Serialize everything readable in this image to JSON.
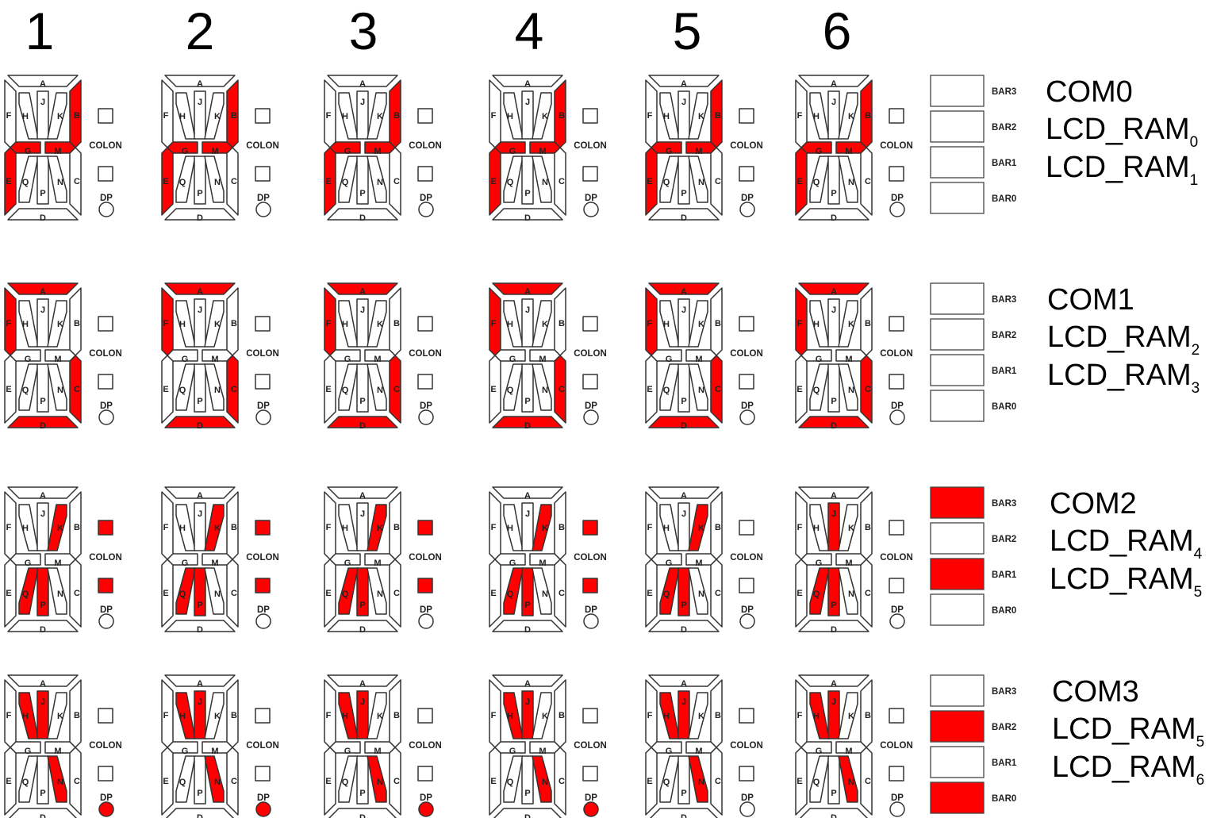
{
  "colors": {
    "on": "#ff0000",
    "off": "#ffffff",
    "stroke": "#333333"
  },
  "segment_labels": [
    "A",
    "B",
    "C",
    "D",
    "E",
    "F",
    "G",
    "M",
    "H",
    "J",
    "K",
    "N",
    "P",
    "Q"
  ],
  "colon_label": "COLON",
  "dp_label": "DP",
  "columns": [
    "1",
    "2",
    "3",
    "4",
    "5",
    "6"
  ],
  "rows": [
    {
      "com": "COM0",
      "ram": [
        {
          "text": "LCD_RAM",
          "sub": "0"
        },
        {
          "text": "LCD_RAM",
          "sub": "1"
        }
      ],
      "bars": [
        {
          "label": "BAR3",
          "on": false
        },
        {
          "label": "BAR2",
          "on": false
        },
        {
          "label": "BAR1",
          "on": false
        },
        {
          "label": "BAR0",
          "on": false
        }
      ],
      "digits": [
        {
          "on": [
            "B",
            "G",
            "M",
            "E"
          ],
          "colon": false,
          "dp": false
        },
        {
          "on": [
            "B",
            "G",
            "M",
            "E"
          ],
          "colon": false,
          "dp": false
        },
        {
          "on": [
            "B",
            "G",
            "M",
            "E"
          ],
          "colon": false,
          "dp": false
        },
        {
          "on": [
            "B",
            "G",
            "M",
            "E"
          ],
          "colon": false,
          "dp": false
        },
        {
          "on": [
            "B",
            "G",
            "M",
            "E"
          ],
          "colon": false,
          "dp": false
        },
        {
          "on": [
            "B",
            "G",
            "M",
            "E"
          ],
          "colon": false,
          "dp": false
        }
      ]
    },
    {
      "com": "COM1",
      "ram": [
        {
          "text": "LCD_RAM",
          "sub": "2"
        },
        {
          "text": "LCD_RAM",
          "sub": "3"
        }
      ],
      "bars": [
        {
          "label": "BAR3",
          "on": false
        },
        {
          "label": "BAR2",
          "on": false
        },
        {
          "label": "BAR1",
          "on": false
        },
        {
          "label": "BAR0",
          "on": false
        }
      ],
      "digits": [
        {
          "on": [
            "A",
            "F",
            "C",
            "D"
          ],
          "colon": false,
          "dp": false
        },
        {
          "on": [
            "A",
            "F",
            "C",
            "D"
          ],
          "colon": false,
          "dp": false
        },
        {
          "on": [
            "A",
            "F",
            "C",
            "D"
          ],
          "colon": false,
          "dp": false
        },
        {
          "on": [
            "A",
            "F",
            "C",
            "D"
          ],
          "colon": false,
          "dp": false
        },
        {
          "on": [
            "A",
            "F",
            "C",
            "D"
          ],
          "colon": false,
          "dp": false
        },
        {
          "on": [
            "A",
            "F",
            "C",
            "D"
          ],
          "colon": false,
          "dp": false
        }
      ]
    },
    {
      "com": "COM2",
      "ram": [
        {
          "text": "LCD_RAM",
          "sub": "4"
        },
        {
          "text": "LCD_RAM",
          "sub": "5"
        }
      ],
      "bars": [
        {
          "label": "BAR3",
          "on": true
        },
        {
          "label": "BAR2",
          "on": false
        },
        {
          "label": "BAR1",
          "on": true
        },
        {
          "label": "BAR0",
          "on": false
        }
      ],
      "digits": [
        {
          "on": [
            "K",
            "Q",
            "P"
          ],
          "colon": true,
          "dp": false
        },
        {
          "on": [
            "K",
            "Q",
            "P"
          ],
          "colon": true,
          "dp": false
        },
        {
          "on": [
            "K",
            "Q",
            "P"
          ],
          "colon": true,
          "dp": false
        },
        {
          "on": [
            "K",
            "Q",
            "P"
          ],
          "colon": true,
          "dp": false
        },
        {
          "on": [
            "K",
            "Q",
            "P"
          ],
          "colon": false,
          "dp": false
        },
        {
          "on": [
            "J",
            "Q",
            "P"
          ],
          "colon": false,
          "dp": false
        }
      ]
    },
    {
      "com": "COM3",
      "ram": [
        {
          "text": "LCD_RAM",
          "sub": "5"
        },
        {
          "text": "LCD_RAM",
          "sub": "6"
        }
      ],
      "bars": [
        {
          "label": "BAR3",
          "on": false
        },
        {
          "label": "BAR2",
          "on": true
        },
        {
          "label": "BAR1",
          "on": false
        },
        {
          "label": "BAR0",
          "on": true
        }
      ],
      "digits": [
        {
          "on": [
            "H",
            "J",
            "N"
          ],
          "colon": false,
          "dp": true
        },
        {
          "on": [
            "H",
            "J",
            "N"
          ],
          "colon": false,
          "dp": true
        },
        {
          "on": [
            "H",
            "J",
            "N"
          ],
          "colon": false,
          "dp": true
        },
        {
          "on": [
            "H",
            "J",
            "N"
          ],
          "colon": false,
          "dp": true
        },
        {
          "on": [
            "H",
            "J",
            "N"
          ],
          "colon": false,
          "dp": false
        },
        {
          "on": [
            "H",
            "J",
            "N"
          ],
          "colon": false,
          "dp": false
        }
      ]
    }
  ]
}
